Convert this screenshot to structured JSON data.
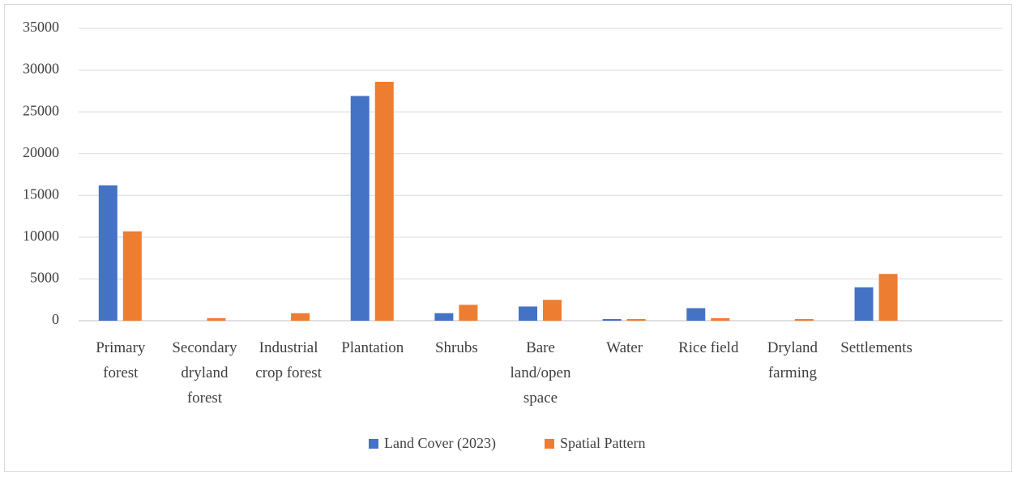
{
  "chart_data": {
    "type": "bar",
    "categories": [
      "Primary forest",
      "Secondary dryland forest",
      "Industrial crop forest",
      "Plantation",
      "Shrubs",
      "Bare land/open space",
      "Water",
      "Rice field",
      "Dryland farming",
      "Settlements",
      null
    ],
    "series": [
      {
        "name": "Land Cover (2023)",
        "color": "#4472c4",
        "values": [
          16200,
          0,
          0,
          26900,
          900,
          1700,
          200,
          1500,
          0,
          4000,
          null
        ]
      },
      {
        "name": "Spatial Pattern",
        "color": "#ed7d31",
        "values": [
          10700,
          300,
          900,
          28600,
          1900,
          2500,
          200,
          300,
          200,
          5600,
          null
        ]
      }
    ],
    "ylim": [
      0,
      35000
    ],
    "yticks": [
      0,
      5000,
      10000,
      15000,
      20000,
      25000,
      30000,
      35000
    ],
    "grid": true,
    "legend": "bottom"
  }
}
